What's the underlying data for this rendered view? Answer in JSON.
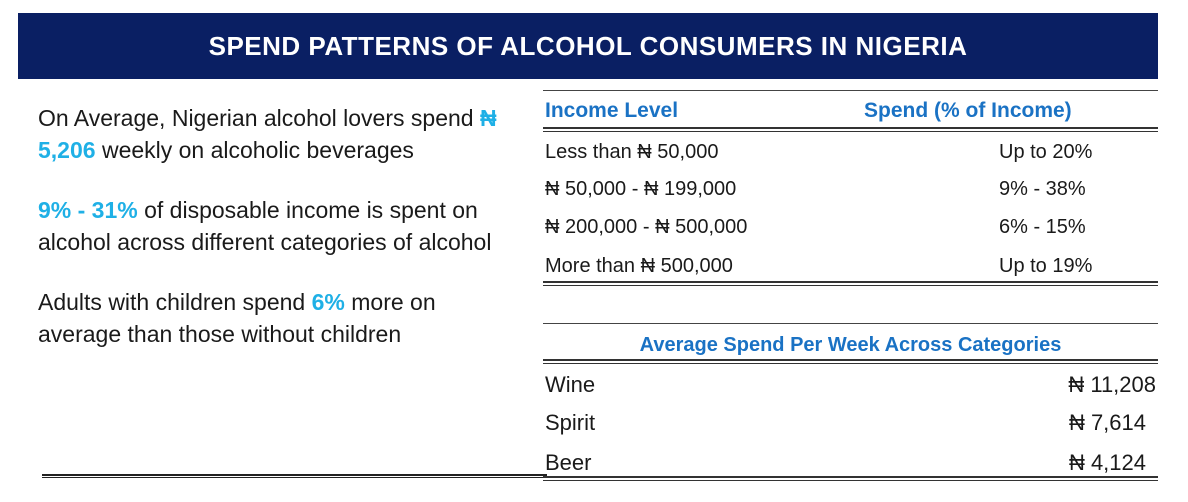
{
  "title": "SPEND PATTERNS OF ALCOHOL CONSUMERS IN NIGERIA",
  "facts": {
    "p1_a": "On Average, Nigerian alcohol lovers spend ",
    "p1_hl": "₦ 5,206",
    "p1_b": " weekly on alcoholic beverages",
    "p2_hl": "9% - 31%",
    "p2_b": " of disposable income is spent on alcohol across different categories of alcohol",
    "p3_a": "Adults with children spend ",
    "p3_hl": "6%",
    "p3_b": " more on average than those without children"
  },
  "income_table": {
    "header_income": "Income Level",
    "header_spend": "Spend (% of Income)",
    "rows": [
      {
        "income": "Less than ₦ 50,000",
        "spend": "Up to 20%"
      },
      {
        "income": "₦ 50,000 - ₦ 199,000",
        "spend": "9% - 38%"
      },
      {
        "income": "₦ 200,000 - ₦ 500,000",
        "spend": "6% - 15%"
      },
      {
        "income": "More than ₦ 500,000",
        "spend": "Up to 19%"
      }
    ]
  },
  "category_table": {
    "title": "Average Spend Per Week Across Categories",
    "rows": [
      {
        "category": "Wine",
        "amount": "₦ 11,208"
      },
      {
        "category": "Spirit",
        "amount": "₦ 7,614"
      },
      {
        "category": "Beer",
        "amount": "₦ 4,124"
      }
    ]
  },
  "colors": {
    "banner": "#0a1f63",
    "highlight": "#1fb0e6",
    "table_header": "#1a72c4"
  }
}
